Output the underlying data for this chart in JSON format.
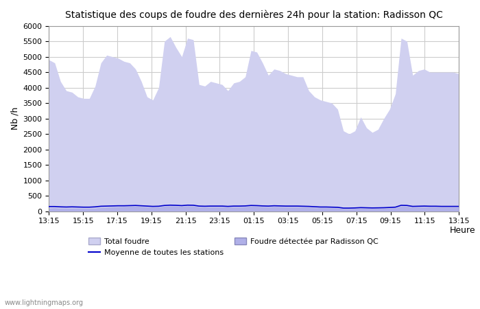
{
  "title": "Statistique des coups de foudre des dernières 24h pour la station: Radisson QC",
  "xlabel": "Heure",
  "ylabel": "Nb /h",
  "xlabels": [
    "13:15",
    "15:15",
    "17:15",
    "19:15",
    "21:15",
    "23:15",
    "01:15",
    "03:15",
    "05:15",
    "07:15",
    "09:15",
    "11:15",
    "13:15"
  ],
  "ylim": [
    0,
    6000
  ],
  "yticks": [
    0,
    500,
    1000,
    1500,
    2000,
    2500,
    3000,
    3500,
    4000,
    4500,
    5000,
    5500,
    6000
  ],
  "bg_color": "#ffffff",
  "plot_bg_color": "#ffffff",
  "grid_color": "#cccccc",
  "fill_total_color": "#d0d0f0",
  "fill_radisson_color": "#b0b0e8",
  "line_mean_color": "#0000cc",
  "watermark": "www.lightningmaps.org",
  "total_foudre": [
    4900,
    4800,
    4200,
    3900,
    3850,
    3700,
    3650,
    3650,
    4050,
    4800,
    5050,
    5000,
    4950,
    4850,
    4800,
    4600,
    4200,
    3700,
    3600,
    4000,
    5500,
    5650,
    5300,
    5000,
    5600,
    5550,
    4100,
    4050,
    4200,
    4150,
    4100,
    3900,
    4150,
    4200,
    4350,
    5200,
    5150,
    4800,
    4400,
    4600,
    4550,
    4450,
    4400,
    4350,
    4350,
    3900,
    3700,
    3600,
    3550,
    3500,
    3300,
    2600,
    2500,
    2600,
    3050,
    2700,
    2550,
    2650,
    3000,
    3300,
    3800,
    5600,
    5500,
    4400,
    4550,
    4600,
    4500,
    4500,
    4500,
    4500,
    4500,
    4450
  ],
  "radisson_foudre": [
    100,
    110,
    100,
    95,
    100,
    95,
    90,
    90,
    100,
    120,
    130,
    140,
    145,
    150,
    155,
    160,
    150,
    140,
    130,
    135,
    160,
    170,
    165,
    155,
    170,
    165,
    140,
    135,
    140,
    140,
    140,
    130,
    140,
    140,
    145,
    160,
    155,
    145,
    140,
    150,
    145,
    140,
    140,
    140,
    135,
    130,
    120,
    110,
    110,
    105,
    100,
    80,
    80,
    85,
    95,
    90,
    85,
    88,
    92,
    100,
    110,
    165,
    160,
    130,
    135,
    140,
    135,
    135,
    130,
    130,
    130,
    130
  ],
  "mean_line": [
    150,
    150,
    140,
    135,
    140,
    135,
    130,
    130,
    140,
    160,
    165,
    170,
    175,
    175,
    180,
    185,
    175,
    165,
    155,
    160,
    185,
    195,
    190,
    180,
    195,
    192,
    165,
    160,
    165,
    165,
    165,
    155,
    165,
    165,
    170,
    185,
    180,
    170,
    165,
    175,
    170,
    165,
    165,
    165,
    160,
    155,
    145,
    135,
    135,
    130,
    125,
    100,
    100,
    105,
    115,
    110,
    105,
    108,
    112,
    120,
    130,
    190,
    185,
    155,
    160,
    165,
    160,
    160,
    155,
    155,
    155,
    155
  ]
}
